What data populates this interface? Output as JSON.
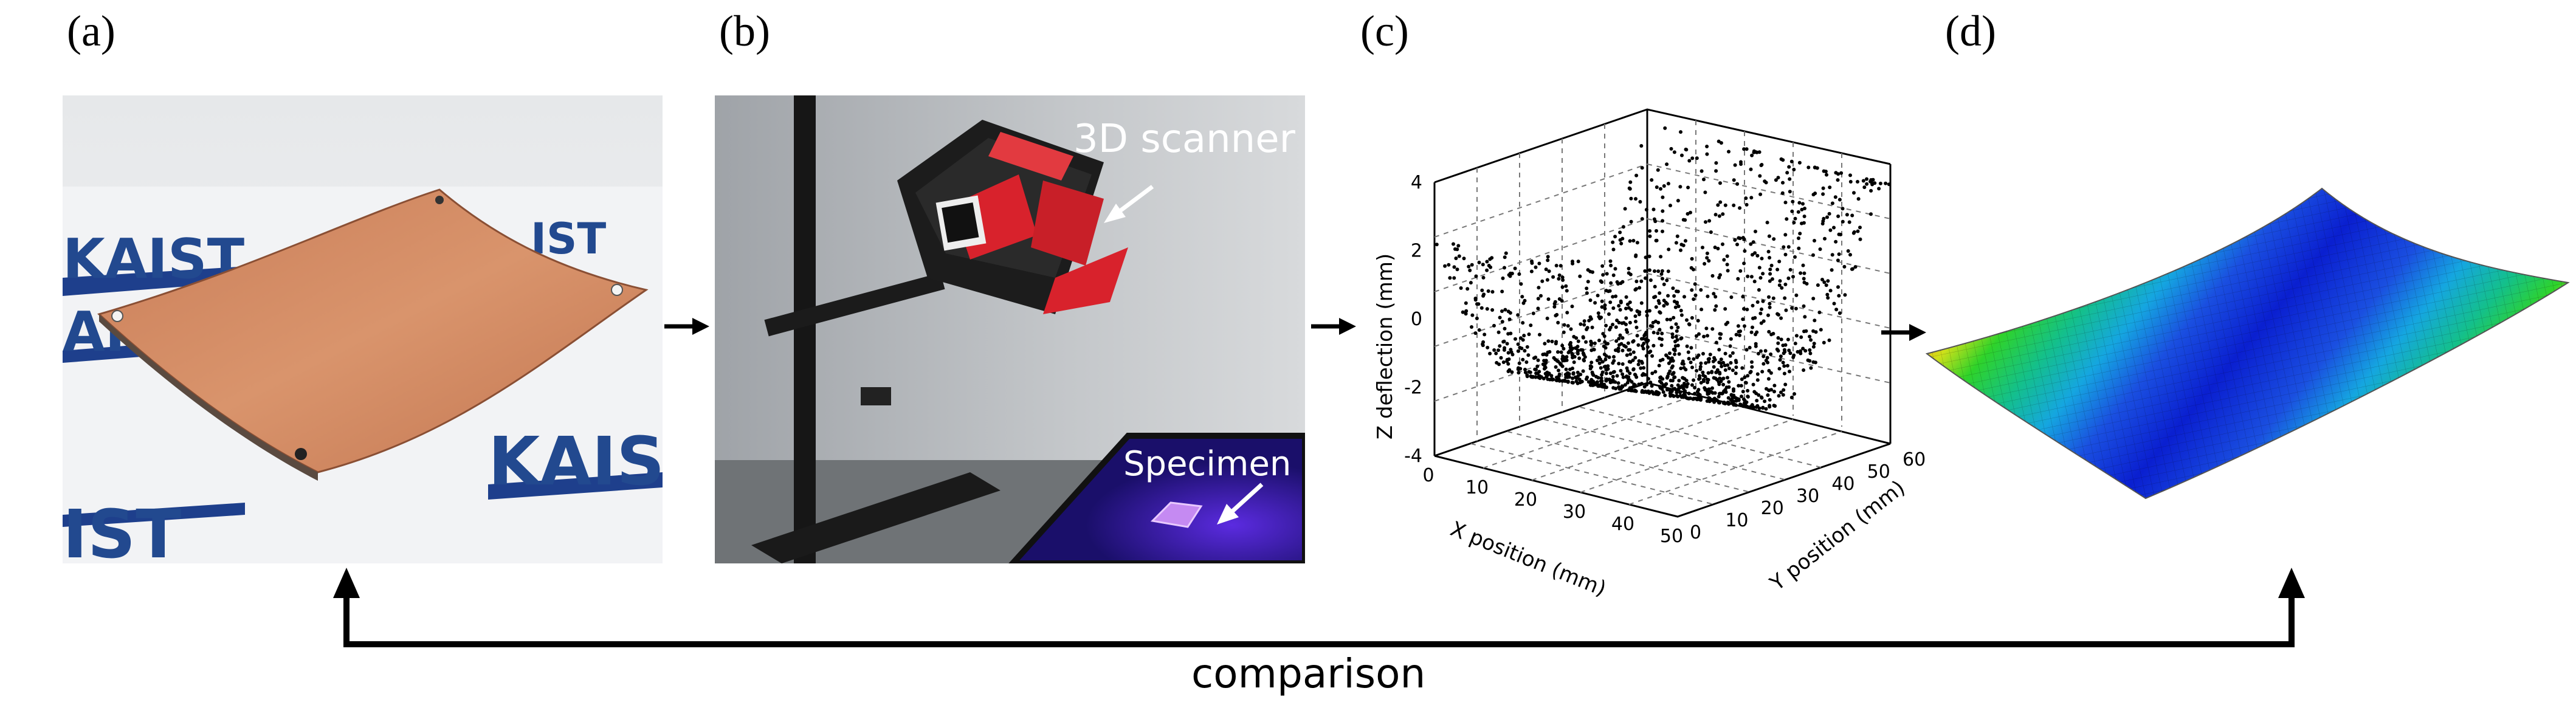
{
  "panels": {
    "a": {
      "label": "(a)",
      "logo_text": "KAIST"
    },
    "b": {
      "label": "(b)",
      "scanner_label": "3D scanner",
      "specimen_label": "Specimen"
    },
    "c": {
      "label": "(c)",
      "chart": {
        "zlabel": "Z deflection (mm)",
        "xlabel": "X position (mm)",
        "ylabel": "Y position (mm)",
        "z_ticks": [
          "4",
          "2",
          "0",
          "-2",
          "-4"
        ],
        "x_ticks": [
          "0",
          "10",
          "20",
          "30",
          "40",
          "50"
        ],
        "y_ticks": [
          "0",
          "10",
          "20",
          "30",
          "40",
          "50",
          "60"
        ]
      }
    },
    "d": {
      "label": "(d)"
    }
  },
  "comparison_label": "comparison",
  "chart_data": {
    "type": "scatter",
    "title": "",
    "xlabel": "X position (mm)",
    "ylabel": "Y position (mm)",
    "zlabel": "Z deflection (mm)",
    "xlim": [
      0,
      50
    ],
    "ylim": [
      0,
      60
    ],
    "zlim": [
      -4,
      4
    ],
    "grid": true,
    "description_of_points": "3D point cloud of a curved plate surface"
  },
  "colors": {
    "plate": "#d38a63",
    "scanner_red": "#d8222c",
    "specimen_glow": "#7a3cff",
    "fem_blue": "#0a1fd0",
    "fem_red": "#e32a14"
  }
}
